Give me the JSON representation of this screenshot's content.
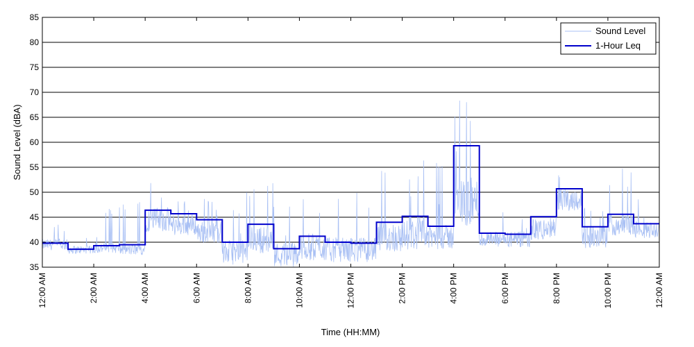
{
  "chart_data": {
    "type": "line",
    "title": "",
    "xlabel": "Time (HH:MM)",
    "ylabel": "Sound Level (dBA)",
    "ylim": [
      35,
      85
    ],
    "yticks": [
      35,
      40,
      45,
      50,
      55,
      60,
      65,
      70,
      75,
      80,
      85
    ],
    "xlim_hours": [
      0,
      24
    ],
    "xtick_labels": [
      "12:00 AM",
      "2:00 AM",
      "4:00 AM",
      "6:00 AM",
      "8:00 AM",
      "10:00 AM",
      "12:00 PM",
      "2:00 PM",
      "4:00 PM",
      "6:00 PM",
      "8:00 PM",
      "10:00 PM",
      "12:00 AM"
    ],
    "grid": "horizontal",
    "legend_position": "top-right",
    "series": [
      {
        "name": "Sound Level",
        "style": "thin",
        "color": "#a9c0f4",
        "hour_profile": [
          {
            "base": 39.5,
            "spread": 2.0,
            "max": 44
          },
          {
            "base": 38.5,
            "spread": 1.5,
            "max": 41
          },
          {
            "base": 38.8,
            "spread": 1.8,
            "max": 47
          },
          {
            "base": 38.5,
            "spread": 2.0,
            "max": 48
          },
          {
            "base": 44.5,
            "spread": 4.5,
            "max": 52
          },
          {
            "base": 43.5,
            "spread": 4.0,
            "max": 49
          },
          {
            "base": 42.0,
            "spread": 4.0,
            "max": 49
          },
          {
            "base": 38.0,
            "spread": 4.5,
            "max": 50
          },
          {
            "base": 40.5,
            "spread": 5.0,
            "max": 52
          },
          {
            "base": 37.5,
            "spread": 4.5,
            "max": 48
          },
          {
            "base": 39.0,
            "spread": 5.0,
            "max": 50
          },
          {
            "base": 38.5,
            "spread": 4.5,
            "max": 49
          },
          {
            "base": 38.5,
            "spread": 4.5,
            "max": 50
          },
          {
            "base": 41.0,
            "spread": 5.5,
            "max": 56
          },
          {
            "base": 41.5,
            "spread": 5.5,
            "max": 57
          },
          {
            "base": 41.0,
            "spread": 4.5,
            "max": 56
          },
          {
            "base": 48.0,
            "spread": 9.0,
            "max": 69
          },
          {
            "base": 40.5,
            "spread": 3.0,
            "max": 47
          },
          {
            "base": 40.5,
            "spread": 3.0,
            "max": 45
          },
          {
            "base": 42.5,
            "spread": 4.0,
            "max": 50
          },
          {
            "base": 48.5,
            "spread": 4.0,
            "max": 57
          },
          {
            "base": 41.0,
            "spread": 4.0,
            "max": 47
          },
          {
            "base": 43.5,
            "spread": 4.0,
            "max": 55
          },
          {
            "base": 42.5,
            "spread": 3.0,
            "max": 51
          }
        ]
      },
      {
        "name": "1-Hour Leq",
        "style": "step",
        "color": "#0000cc",
        "hours": [
          0,
          1,
          2,
          3,
          4,
          5,
          6,
          7,
          8,
          9,
          10,
          11,
          12,
          13,
          14,
          15,
          16,
          17,
          18,
          19,
          20,
          21,
          22,
          23
        ],
        "values": [
          39.8,
          38.6,
          39.3,
          39.5,
          46.4,
          45.7,
          44.5,
          40.0,
          43.6,
          38.7,
          41.2,
          40.0,
          39.8,
          44.0,
          45.2,
          43.2,
          59.3,
          41.8,
          41.6,
          45.1,
          50.7,
          43.1,
          45.6,
          43.7
        ]
      }
    ]
  }
}
